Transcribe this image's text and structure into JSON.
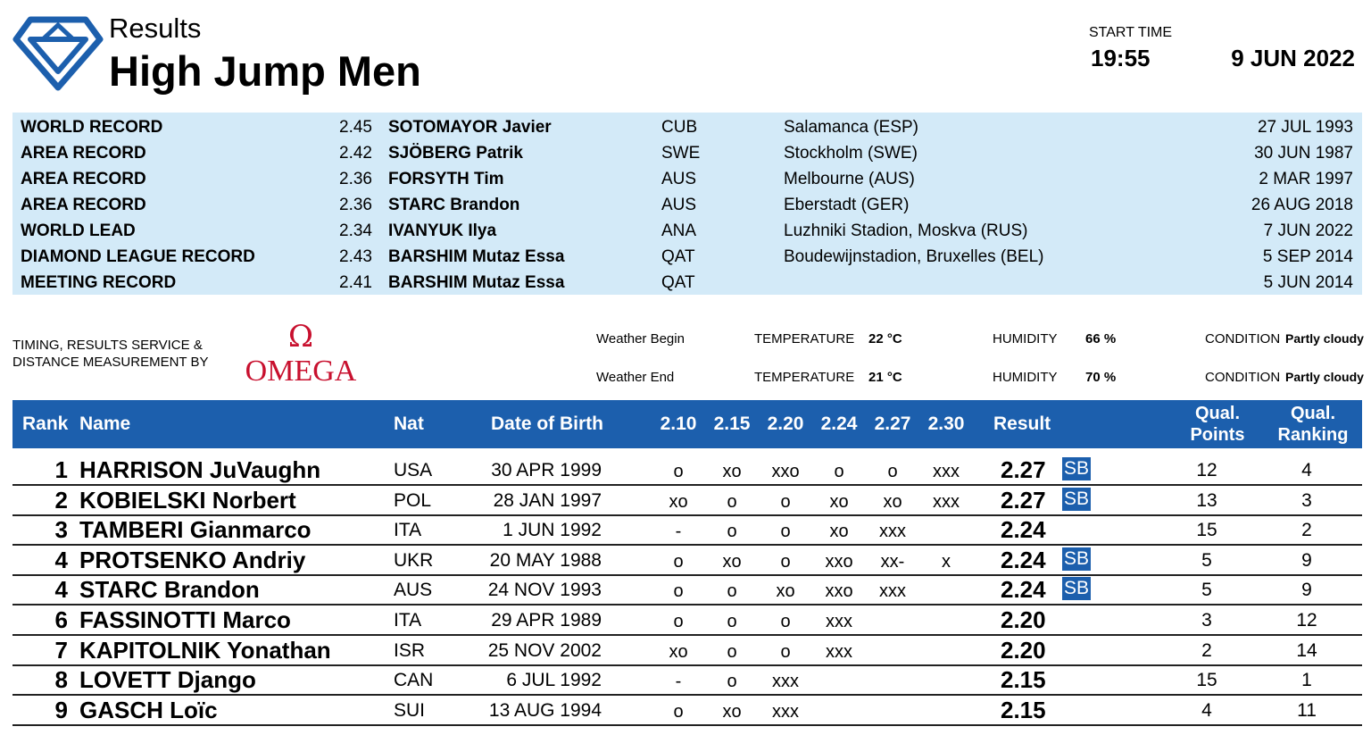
{
  "header": {
    "results_label": "Results",
    "event_title": "High Jump Men",
    "start_time_label": "START TIME",
    "start_time": "19:55",
    "date": "9 JUN 2022"
  },
  "records": [
    {
      "type": "WORLD RECORD",
      "mark": "2.45",
      "name": "SOTOMAYOR Javier",
      "nat": "CUB",
      "venue": "Salamanca (ESP)",
      "date": "27 JUL 1993"
    },
    {
      "type": "AREA RECORD",
      "mark": "2.42",
      "name": "SJÖBERG Patrik",
      "nat": "SWE",
      "venue": "Stockholm (SWE)",
      "date": "30 JUN 1987"
    },
    {
      "type": "AREA RECORD",
      "mark": "2.36",
      "name": "FORSYTH Tim",
      "nat": "AUS",
      "venue": "Melbourne (AUS)",
      "date": "2 MAR 1997"
    },
    {
      "type": "AREA RECORD",
      "mark": "2.36",
      "name": "STARC Brandon",
      "nat": "AUS",
      "venue": "Eberstadt (GER)",
      "date": "26 AUG 2018"
    },
    {
      "type": "WORLD LEAD",
      "mark": "2.34",
      "name": "IVANYUK Ilya",
      "nat": "ANA",
      "venue": "Luzhniki Stadion, Moskva (RUS)",
      "date": "7 JUN 2022"
    },
    {
      "type": "DIAMOND LEAGUE RECORD",
      "mark": "2.43",
      "name": "BARSHIM Mutaz Essa",
      "nat": "QAT",
      "venue": "Boudewijnstadion, Bruxelles (BEL)",
      "date": "5 SEP 2014"
    },
    {
      "type": "MEETING RECORD",
      "mark": "2.41",
      "name": "BARSHIM Mutaz Essa",
      "nat": "QAT",
      "venue": "",
      "date": "5 JUN 2014"
    }
  ],
  "timing": {
    "line1": "TIMING, RESULTS SERVICE &",
    "line2": "DISTANCE MEASUREMENT BY",
    "brand": "OMEGA"
  },
  "weather": {
    "begin": {
      "label": "Weather Begin",
      "temp_label": "TEMPERATURE",
      "temp": "22 °C",
      "hum_label": "HUMIDITY",
      "hum": "66 %",
      "cond_label": "CONDITION",
      "cond": "Partly cloudy"
    },
    "end": {
      "label": "Weather End",
      "temp_label": "TEMPERATURE",
      "temp": "21 °C",
      "hum_label": "HUMIDITY",
      "hum": "70 %",
      "cond_label": "CONDITION",
      "cond": "Partly cloudy"
    }
  },
  "table": {
    "headers": {
      "rank": "Rank",
      "name": "Name",
      "nat": "Nat",
      "dob": "Date of Birth",
      "heights": [
        "2.10",
        "2.15",
        "2.20",
        "2.24",
        "2.27",
        "2.30"
      ],
      "result": "Result",
      "qual_points_1": "Qual.",
      "qual_points_2": "Points",
      "qual_ranking_1": "Qual.",
      "qual_ranking_2": "Ranking"
    },
    "rows": [
      {
        "rank": "1",
        "name": "HARRISON JuVaughn",
        "nat": "USA",
        "dob": "30 APR 1999",
        "attempts": [
          "o",
          "xo",
          "xxo",
          "o",
          "o",
          "xxx"
        ],
        "result": "2.27",
        "sb": "SB",
        "qp": "12",
        "qr": "4"
      },
      {
        "rank": "2",
        "name": "KOBIELSKI Norbert",
        "nat": "POL",
        "dob": "28 JAN 1997",
        "attempts": [
          "xo",
          "o",
          "o",
          "xo",
          "xo",
          "xxx"
        ],
        "result": "2.27",
        "sb": "SB",
        "qp": "13",
        "qr": "3"
      },
      {
        "rank": "3",
        "name": "TAMBERI Gianmarco",
        "nat": "ITA",
        "dob": "1 JUN 1992",
        "attempts": [
          "-",
          "o",
          "o",
          "xo",
          "xxx",
          ""
        ],
        "result": "2.24",
        "sb": "",
        "qp": "15",
        "qr": "2"
      },
      {
        "rank": "4",
        "name": "PROTSENKO Andriy",
        "nat": "UKR",
        "dob": "20 MAY 1988",
        "attempts": [
          "o",
          "xo",
          "o",
          "xxo",
          "xx-",
          "x"
        ],
        "result": "2.24",
        "sb": "SB",
        "qp": "5",
        "qr": "9"
      },
      {
        "rank": "4",
        "name": "STARC Brandon",
        "nat": "AUS",
        "dob": "24 NOV 1993",
        "attempts": [
          "o",
          "o",
          "xo",
          "xxo",
          "xxx",
          ""
        ],
        "result": "2.24",
        "sb": "SB",
        "qp": "5",
        "qr": "9"
      },
      {
        "rank": "6",
        "name": "FASSINOTTI Marco",
        "nat": "ITA",
        "dob": "29 APR 1989",
        "attempts": [
          "o",
          "o",
          "o",
          "xxx",
          "",
          ""
        ],
        "result": "2.20",
        "sb": "",
        "qp": "3",
        "qr": "12"
      },
      {
        "rank": "7",
        "name": "KAPITOLNIK Yonathan",
        "nat": "ISR",
        "dob": "25 NOV 2002",
        "attempts": [
          "xo",
          "o",
          "o",
          "xxx",
          "",
          ""
        ],
        "result": "2.20",
        "sb": "",
        "qp": "2",
        "qr": "14"
      },
      {
        "rank": "8",
        "name": "LOVETT Django",
        "nat": "CAN",
        "dob": "6 JUL 1992",
        "attempts": [
          "-",
          "o",
          "xxx",
          "",
          "",
          ""
        ],
        "result": "2.15",
        "sb": "",
        "qp": "15",
        "qr": "1"
      },
      {
        "rank": "9",
        "name": "GASCH Loïc",
        "nat": "SUI",
        "dob": "13 AUG 1994",
        "attempts": [
          "o",
          "xo",
          "xxx",
          "",
          "",
          ""
        ],
        "result": "2.15",
        "sb": "",
        "qp": "4",
        "qr": "11"
      }
    ]
  },
  "colors": {
    "brand_blue": "#1c5fad",
    "record_bg": "#d3eaf8",
    "omega_red": "#c8102e"
  }
}
